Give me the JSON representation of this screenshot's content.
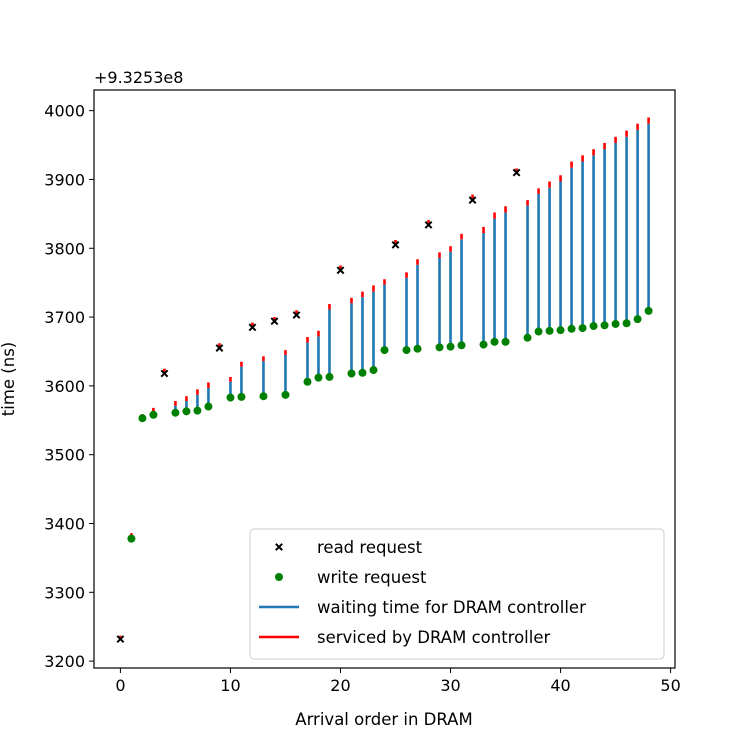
{
  "chart_data": {
    "type": "scatter",
    "xlabel": "Arrival order in DRAM",
    "ylabel": "time (ns)",
    "offset_text": "+9.3253e8",
    "xlim": [
      -2.4,
      50.4
    ],
    "ylim": [
      3190,
      4030
    ],
    "xticks": [
      0,
      10,
      20,
      30,
      40,
      50
    ],
    "yticks": [
      3200,
      3300,
      3400,
      3500,
      3600,
      3700,
      3800,
      3900,
      4000
    ],
    "grid": false,
    "legend_position": "lower-right",
    "colors": {
      "read": "#000000",
      "write": "#008000",
      "waiting": "#1f77b4",
      "serviced": "#ff0000"
    },
    "legend": [
      {
        "label": "read request",
        "marker": "x",
        "color": "#000000"
      },
      {
        "label": "write request",
        "marker": "dot",
        "color": "#008000"
      },
      {
        "label": "waiting time for DRAM controller",
        "marker": "line",
        "color": "#1f77b4"
      },
      {
        "label": "serviced by DRAM controller",
        "marker": "line",
        "color": "#ff0000"
      }
    ],
    "requests": [
      {
        "x": 0,
        "arrival": 3232,
        "service_start": 3232,
        "service_end": 3237,
        "type": "read"
      },
      {
        "x": 1,
        "arrival": 3378,
        "service_start": 3380,
        "service_end": 3386,
        "type": "write"
      },
      {
        "x": 2,
        "arrival": 3553,
        "service_start": 3553,
        "service_end": 3559,
        "type": "write"
      },
      {
        "x": 3,
        "arrival": 3558,
        "service_start": 3562,
        "service_end": 3568,
        "type": "write"
      },
      {
        "x": 4,
        "arrival": 3618,
        "service_start": 3618,
        "service_end": 3625,
        "type": "read"
      },
      {
        "x": 5,
        "arrival": 3561,
        "service_start": 3571,
        "service_end": 3578,
        "type": "write"
      },
      {
        "x": 6,
        "arrival": 3563,
        "service_start": 3578,
        "service_end": 3585,
        "type": "write"
      },
      {
        "x": 7,
        "arrival": 3564,
        "service_start": 3587,
        "service_end": 3595,
        "type": "write"
      },
      {
        "x": 8,
        "arrival": 3570,
        "service_start": 3597,
        "service_end": 3605,
        "type": "write"
      },
      {
        "x": 9,
        "arrival": 3655,
        "service_start": 3657,
        "service_end": 3662,
        "type": "read"
      },
      {
        "x": 10,
        "arrival": 3583,
        "service_start": 3606,
        "service_end": 3613,
        "type": "write"
      },
      {
        "x": 11,
        "arrival": 3584,
        "service_start": 3628,
        "service_end": 3635,
        "type": "write"
      },
      {
        "x": 12,
        "arrival": 3685,
        "service_start": 3686,
        "service_end": 3692,
        "type": "read"
      },
      {
        "x": 13,
        "arrival": 3585,
        "service_start": 3636,
        "service_end": 3643,
        "type": "write"
      },
      {
        "x": 14,
        "arrival": 3694,
        "service_start": 3695,
        "service_end": 3700,
        "type": "read"
      },
      {
        "x": 15,
        "arrival": 3587,
        "service_start": 3645,
        "service_end": 3652,
        "type": "write"
      },
      {
        "x": 16,
        "arrival": 3703,
        "service_start": 3703,
        "service_end": 3710,
        "type": "read"
      },
      {
        "x": 17,
        "arrival": 3606,
        "service_start": 3663,
        "service_end": 3671,
        "type": "write"
      },
      {
        "x": 18,
        "arrival": 3612,
        "service_start": 3672,
        "service_end": 3680,
        "type": "write"
      },
      {
        "x": 19,
        "arrival": 3613,
        "service_start": 3711,
        "service_end": 3719,
        "type": "write"
      },
      {
        "x": 20,
        "arrival": 3768,
        "service_start": 3769,
        "service_end": 3775,
        "type": "read"
      },
      {
        "x": 21,
        "arrival": 3618,
        "service_start": 3720,
        "service_end": 3728,
        "type": "write"
      },
      {
        "x": 22,
        "arrival": 3619,
        "service_start": 3729,
        "service_end": 3737,
        "type": "write"
      },
      {
        "x": 23,
        "arrival": 3623,
        "service_start": 3737,
        "service_end": 3746,
        "type": "write"
      },
      {
        "x": 24,
        "arrival": 3652,
        "service_start": 3747,
        "service_end": 3755,
        "type": "write"
      },
      {
        "x": 25,
        "arrival": 3805,
        "service_start": 3806,
        "service_end": 3812,
        "type": "read"
      },
      {
        "x": 26,
        "arrival": 3652,
        "service_start": 3757,
        "service_end": 3765,
        "type": "write"
      },
      {
        "x": 27,
        "arrival": 3654,
        "service_start": 3776,
        "service_end": 3784,
        "type": "write"
      },
      {
        "x": 28,
        "arrival": 3834,
        "service_start": 3835,
        "service_end": 3841,
        "type": "read"
      },
      {
        "x": 29,
        "arrival": 3656,
        "service_start": 3786,
        "service_end": 3794,
        "type": "write"
      },
      {
        "x": 30,
        "arrival": 3657,
        "service_start": 3795,
        "service_end": 3803,
        "type": "write"
      },
      {
        "x": 31,
        "arrival": 3659,
        "service_start": 3813,
        "service_end": 3821,
        "type": "write"
      },
      {
        "x": 32,
        "arrival": 3870,
        "service_start": 3871,
        "service_end": 3878,
        "type": "read"
      },
      {
        "x": 33,
        "arrival": 3660,
        "service_start": 3822,
        "service_end": 3831,
        "type": "write"
      },
      {
        "x": 34,
        "arrival": 3664,
        "service_start": 3843,
        "service_end": 3852,
        "type": "write"
      },
      {
        "x": 35,
        "arrival": 3664,
        "service_start": 3852,
        "service_end": 3861,
        "type": "write"
      },
      {
        "x": 36,
        "arrival": 3910,
        "service_start": 3910,
        "service_end": 3916,
        "type": "read"
      },
      {
        "x": 37,
        "arrival": 3670,
        "service_start": 3862,
        "service_end": 3870,
        "type": "write"
      },
      {
        "x": 38,
        "arrival": 3679,
        "service_start": 3879,
        "service_end": 3887,
        "type": "write"
      },
      {
        "x": 39,
        "arrival": 3680,
        "service_start": 3888,
        "service_end": 3897,
        "type": "write"
      },
      {
        "x": 40,
        "arrival": 3681,
        "service_start": 3897,
        "service_end": 3906,
        "type": "write"
      },
      {
        "x": 41,
        "arrival": 3683,
        "service_start": 3917,
        "service_end": 3926,
        "type": "write"
      },
      {
        "x": 42,
        "arrival": 3684,
        "service_start": 3926,
        "service_end": 3935,
        "type": "write"
      },
      {
        "x": 43,
        "arrival": 3687,
        "service_start": 3935,
        "service_end": 3944,
        "type": "write"
      },
      {
        "x": 44,
        "arrival": 3688,
        "service_start": 3944,
        "service_end": 3953,
        "type": "write"
      },
      {
        "x": 45,
        "arrival": 3690,
        "service_start": 3953,
        "service_end": 3962,
        "type": "write"
      },
      {
        "x": 46,
        "arrival": 3691,
        "service_start": 3962,
        "service_end": 3971,
        "type": "write"
      },
      {
        "x": 47,
        "arrival": 3697,
        "service_start": 3972,
        "service_end": 3981,
        "type": "write"
      },
      {
        "x": 48,
        "arrival": 3709,
        "service_start": 3981,
        "service_end": 3990,
        "type": "write"
      }
    ]
  }
}
